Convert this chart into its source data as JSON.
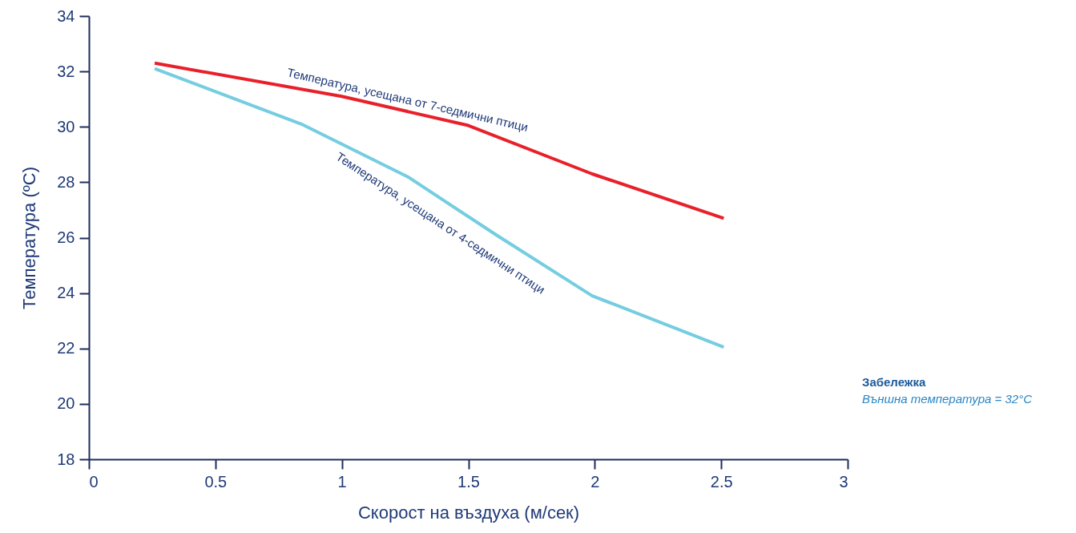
{
  "chart_data": {
    "type": "line",
    "xlabel": "Скорост на въздуха (м/сек)",
    "ylabel": "Температура (ºC)",
    "xlim": [
      0,
      3
    ],
    "xticks": [
      0,
      0.5,
      1,
      1.5,
      2,
      2.5,
      3
    ],
    "ylim": [
      18,
      34
    ],
    "yticks": [
      18,
      20,
      22,
      24,
      26,
      28,
      30,
      32,
      34
    ],
    "series": [
      {
        "name": "Температура, усещана от 7-седмични птици",
        "color": "#e8202a",
        "x": [
          0.26,
          1.0,
          1.5,
          1.99,
          2.51
        ],
        "values": [
          32.3,
          31.1,
          30.05,
          28.3,
          26.7
        ]
      },
      {
        "name": "Температура, усещана от 4-седмични птици",
        "color": "#74cde0",
        "x": [
          0.26,
          0.84,
          1.26,
          1.61,
          1.99,
          2.51
        ],
        "values": [
          32.1,
          30.1,
          28.2,
          26.1,
          23.9,
          22.05
        ]
      }
    ],
    "annotations": [
      "Забележка",
      "Външна температура = 32°C"
    ]
  }
}
